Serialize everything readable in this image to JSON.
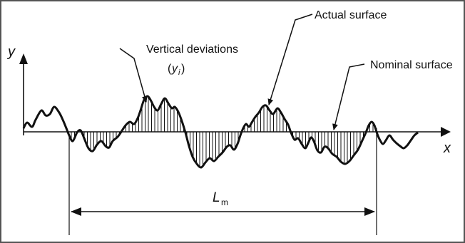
{
  "figure": {
    "labels": {
      "actual_surface": "Actual surface",
      "nominal_surface": "Nominal surface",
      "vertical_deviations": "Vertical deviations",
      "yi_main": "y",
      "yi_sub": "i",
      "y_axis": "y",
      "x_axis": "x",
      "length_main": "L",
      "length_sub": "m"
    },
    "colors": {
      "ink": "#111111",
      "frame": "#555555",
      "background": "#ffffff"
    }
  }
}
